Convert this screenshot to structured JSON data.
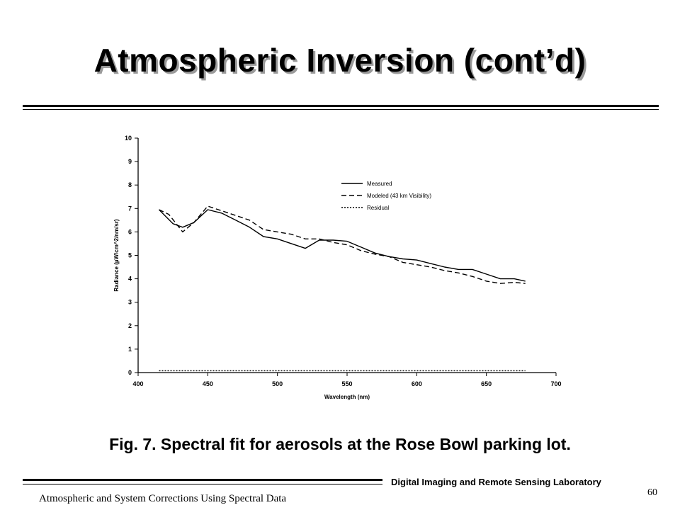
{
  "slide": {
    "title": "Atmospheric Inversion (cont’d)",
    "caption": "Fig. 7.  Spectral fit for aerosols at the Rose Bowl parking lot.",
    "lab_name": "Digital Imaging and Remote Sensing Laboratory",
    "page_number": "60",
    "footer_title": "Atmospheric and System Corrections Using Spectral Data"
  },
  "chart_data": {
    "type": "line",
    "xlabel": "Wavelength (nm)",
    "ylabel": "Radiance (µW/cm^2/nm/sr)",
    "xlim": [
      400,
      700
    ],
    "ylim": [
      0,
      10
    ],
    "x_ticks": [
      "400",
      "450",
      "500",
      "550",
      "600",
      "650",
      "700"
    ],
    "y_ticks": [
      "0",
      "1",
      "2",
      "3",
      "4",
      "5",
      "6",
      "7",
      "8",
      "9",
      "10"
    ],
    "grid": false,
    "legend_position": "upper-right",
    "series": [
      {
        "name": "Measured",
        "style": "solid",
        "x": [
          415,
          420,
          425,
          432,
          440,
          450,
          460,
          470,
          480,
          490,
          500,
          510,
          520,
          530,
          540,
          550,
          560,
          570,
          580,
          590,
          600,
          610,
          620,
          630,
          640,
          650,
          660,
          670,
          678
        ],
        "y": [
          6.95,
          6.65,
          6.35,
          6.2,
          6.4,
          6.95,
          6.8,
          6.5,
          6.2,
          5.8,
          5.7,
          5.5,
          5.3,
          5.65,
          5.65,
          5.6,
          5.35,
          5.1,
          4.95,
          4.85,
          4.8,
          4.65,
          4.5,
          4.4,
          4.4,
          4.2,
          4.0,
          4.0,
          3.9
        ]
      },
      {
        "name": "Modeled (43 km Visibility)",
        "style": "dashed",
        "x": [
          415,
          422,
          428,
          432,
          440,
          450,
          460,
          470,
          480,
          490,
          500,
          510,
          520,
          530,
          540,
          550,
          560,
          570,
          580,
          590,
          600,
          610,
          620,
          630,
          640,
          650,
          660,
          670,
          678
        ],
        "y": [
          6.95,
          6.75,
          6.3,
          6.0,
          6.4,
          7.1,
          6.9,
          6.7,
          6.5,
          6.1,
          6.0,
          5.9,
          5.7,
          5.7,
          5.55,
          5.45,
          5.2,
          5.05,
          4.95,
          4.7,
          4.6,
          4.5,
          4.35,
          4.25,
          4.1,
          3.9,
          3.8,
          3.85,
          3.8
        ]
      },
      {
        "name": "Residual",
        "style": "dotted",
        "x": [
          415,
          678
        ],
        "y": [
          0.08,
          0.08
        ]
      }
    ]
  },
  "colors": {
    "background": "#ffffff",
    "ink": "#000000",
    "title_shadow": "#9a9a9a"
  }
}
